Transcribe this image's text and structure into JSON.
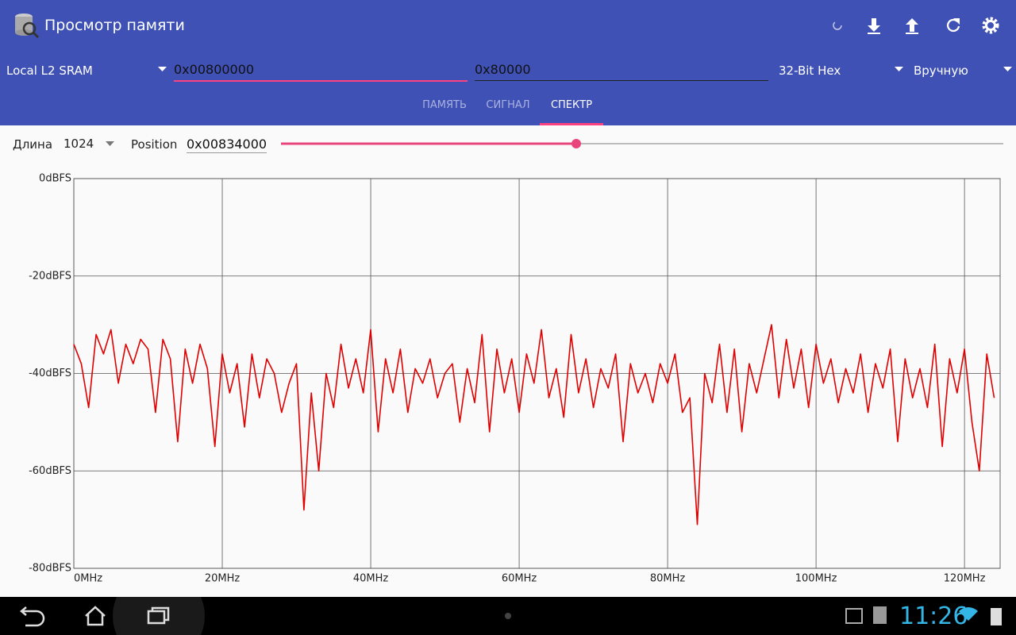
{
  "header": {
    "title": "Просмотр памяти"
  },
  "toolbar": {
    "memory": "Local L2 SRAM",
    "address": "0x00800000",
    "size": "0x80000",
    "format": "32-Bit Hex",
    "mode": "Вручную"
  },
  "tabs": [
    "ПАМЯТЬ",
    "СИГНАЛ",
    "СПЕКТР"
  ],
  "controls": {
    "length_label": "Длина",
    "length": "1024",
    "position_label": "Position",
    "position": "0x00834000"
  },
  "status_bar": {
    "time": "11:26"
  },
  "chart_data": {
    "type": "line",
    "x": [
      0,
      1,
      2,
      3,
      4,
      5,
      6,
      7,
      8,
      9,
      10,
      11,
      12,
      13,
      14,
      15,
      16,
      17,
      18,
      19,
      20,
      21,
      22,
      23,
      24,
      25,
      26,
      27,
      28,
      29,
      30,
      31,
      32,
      33,
      34,
      35,
      36,
      37,
      38,
      39,
      40,
      41,
      42,
      43,
      44,
      45,
      46,
      47,
      48,
      49,
      50,
      51,
      52,
      53,
      54,
      55,
      56,
      57,
      58,
      59,
      60,
      61,
      62,
      63,
      64,
      65,
      66,
      67,
      68,
      69,
      70,
      71,
      72,
      73,
      74,
      75,
      76,
      77,
      78,
      79,
      80,
      81,
      82,
      83,
      84,
      85,
      86,
      87,
      88,
      89,
      90,
      91,
      92,
      93,
      94,
      95,
      96,
      97,
      98,
      99,
      100,
      101,
      102,
      103,
      104,
      105,
      106,
      107,
      108,
      109,
      110,
      111,
      112,
      113,
      114,
      115,
      116,
      117,
      118,
      119,
      120,
      121,
      122,
      123,
      124
    ],
    "series": [
      {
        "color": "#e00000",
        "values": [
          -34,
          -38,
          -47,
          -32,
          -36,
          -31,
          -42,
          -34,
          -38,
          -33,
          -35,
          -48,
          -33,
          -37,
          -54,
          -35,
          -42,
          -34,
          -39,
          -55,
          -36,
          -44,
          -38,
          -51,
          -36,
          -45,
          -37,
          -40,
          -48,
          -42,
          -38,
          -68,
          -44,
          -60,
          -40,
          -47,
          -34,
          -43,
          -37,
          -44,
          -31,
          -52,
          -37,
          -44,
          -35,
          -48,
          -39,
          -42,
          -37,
          -45,
          -40,
          -38,
          -50,
          -39,
          -46,
          -32,
          -52,
          -35,
          -44,
          -37,
          -48,
          -36,
          -42,
          -31,
          -45,
          -39,
          -49,
          -32,
          -44,
          -37,
          -47,
          -39,
          -43,
          -36,
          -54,
          -38,
          -44,
          -40,
          -46,
          -38,
          -42,
          -36,
          -48,
          -45,
          -71,
          -40,
          -46,
          -34,
          -48,
          -35,
          -52,
          -38,
          -44,
          -37,
          -30,
          -45,
          -33,
          -43,
          -35,
          -47,
          -34,
          -42,
          -37,
          -46,
          -39,
          -44,
          -36,
          -48,
          -38,
          -43,
          -35,
          -54,
          -37,
          -45,
          -39,
          -47,
          -34,
          -55,
          -37,
          -44,
          -35,
          -50,
          -60,
          -36,
          -45
        ]
      }
    ],
    "xlim": [
      0,
      124.8
    ],
    "ylim": [
      -80,
      0
    ],
    "xticks": [
      {
        "value": 0,
        "label": "0MHz"
      },
      {
        "value": 20,
        "label": "20MHz"
      },
      {
        "value": 40,
        "label": "40MHz"
      },
      {
        "value": 60,
        "label": "60MHz"
      },
      {
        "value": 80,
        "label": "80MHz"
      },
      {
        "value": 100,
        "label": "100MHz"
      },
      {
        "value": 120,
        "label": "120MHz"
      }
    ],
    "yticks": [
      {
        "value": 0,
        "label": "0dBFS"
      },
      {
        "value": -20,
        "label": "-20dBFS"
      },
      {
        "value": -40,
        "label": "-40dBFS"
      },
      {
        "value": -60,
        "label": "-60dBFS"
      },
      {
        "value": -80,
        "label": "-80dBFS"
      }
    ],
    "grid": true
  }
}
